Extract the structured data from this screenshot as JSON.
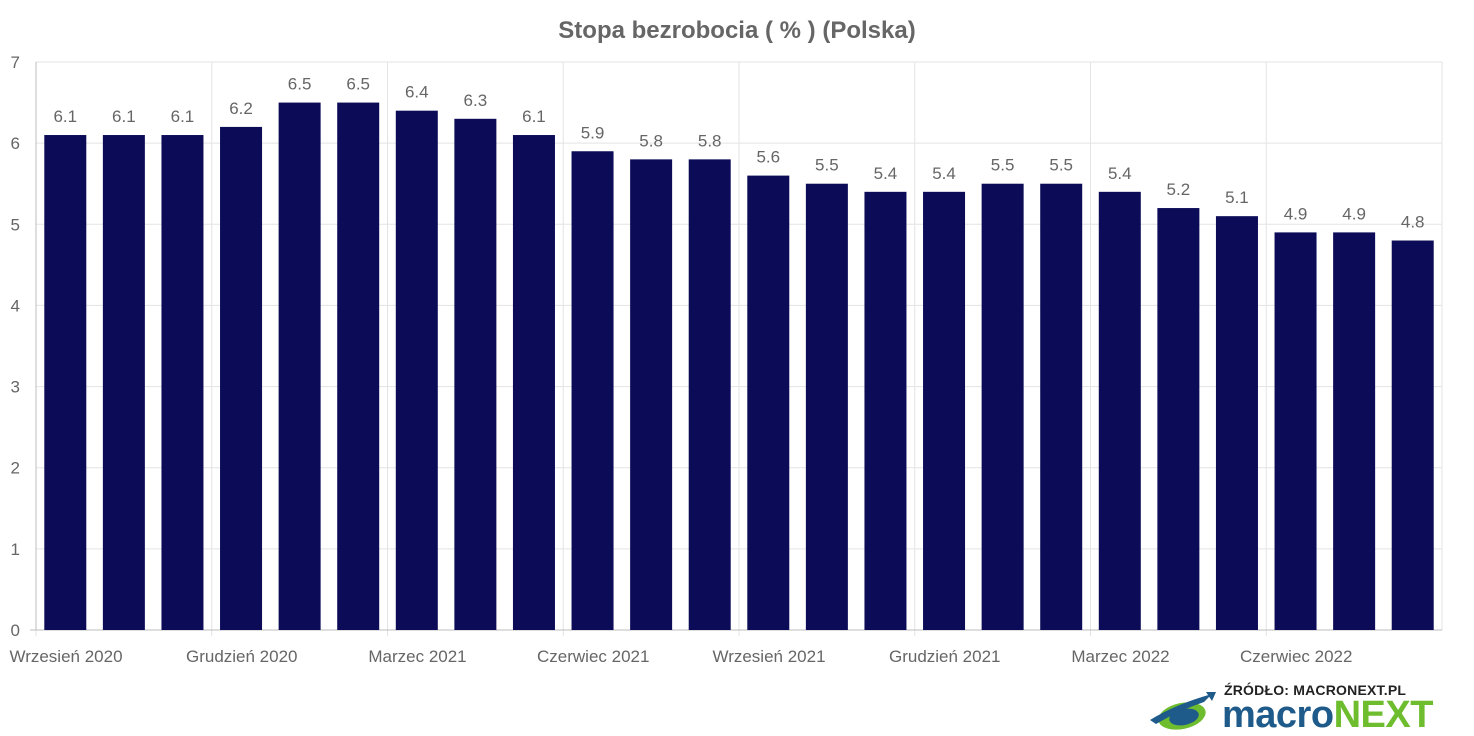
{
  "chart_data": {
    "type": "bar",
    "title": "Stopa bezrobocia ( % ) (Polska)",
    "xlabel": "",
    "ylabel": "",
    "ylim": [
      0,
      7
    ],
    "yticks": [
      0,
      1,
      2,
      3,
      4,
      5,
      6,
      7
    ],
    "grid": true,
    "bar_color": "#0b0b57",
    "categories": [
      "2020-09",
      "2020-10",
      "2020-11",
      "2020-12",
      "2021-01",
      "2021-02",
      "2021-03",
      "2021-04",
      "2021-05",
      "2021-06",
      "2021-07",
      "2021-08",
      "2021-09",
      "2021-10",
      "2021-11",
      "2021-12",
      "2022-01",
      "2022-02",
      "2022-03",
      "2022-04",
      "2022-05",
      "2022-06",
      "2022-07",
      "2022-08"
    ],
    "values": [
      6.1,
      6.1,
      6.1,
      6.2,
      6.5,
      6.5,
      6.4,
      6.3,
      6.1,
      5.9,
      5.8,
      5.8,
      5.6,
      5.5,
      5.4,
      5.4,
      5.5,
      5.5,
      5.4,
      5.2,
      5.1,
      4.9,
      4.9,
      4.8
    ],
    "value_labels": [
      "6.1",
      "6.1",
      "6.1",
      "6.2",
      "6.5",
      "6.5",
      "6.4",
      "6.3",
      "6.1",
      "5.9",
      "5.8",
      "5.8",
      "5.6",
      "5.5",
      "5.4",
      "5.4",
      "5.5",
      "5.5",
      "5.4",
      "5.2",
      "5.1",
      "4.9",
      "4.9",
      "4.8"
    ],
    "x_tick_labels": [
      {
        "index": 0,
        "label": "Wrzesień 2020"
      },
      {
        "index": 3,
        "label": "Grudzień 2020"
      },
      {
        "index": 6,
        "label": "Marzec 2021"
      },
      {
        "index": 9,
        "label": "Czerwiec 2021"
      },
      {
        "index": 12,
        "label": "Wrzesień 2021"
      },
      {
        "index": 15,
        "label": "Grudzień 2021"
      },
      {
        "index": 18,
        "label": "Marzec 2022"
      },
      {
        "index": 21,
        "label": "Czerwiec 2022"
      }
    ]
  },
  "logo": {
    "source_text": "ŹRÓDŁO: MACRONEXT.PL",
    "brand_part1": "macro",
    "brand_part2": "NEXT",
    "colors": {
      "blue": "#1e5a8a",
      "green": "#6dbd2e"
    }
  }
}
